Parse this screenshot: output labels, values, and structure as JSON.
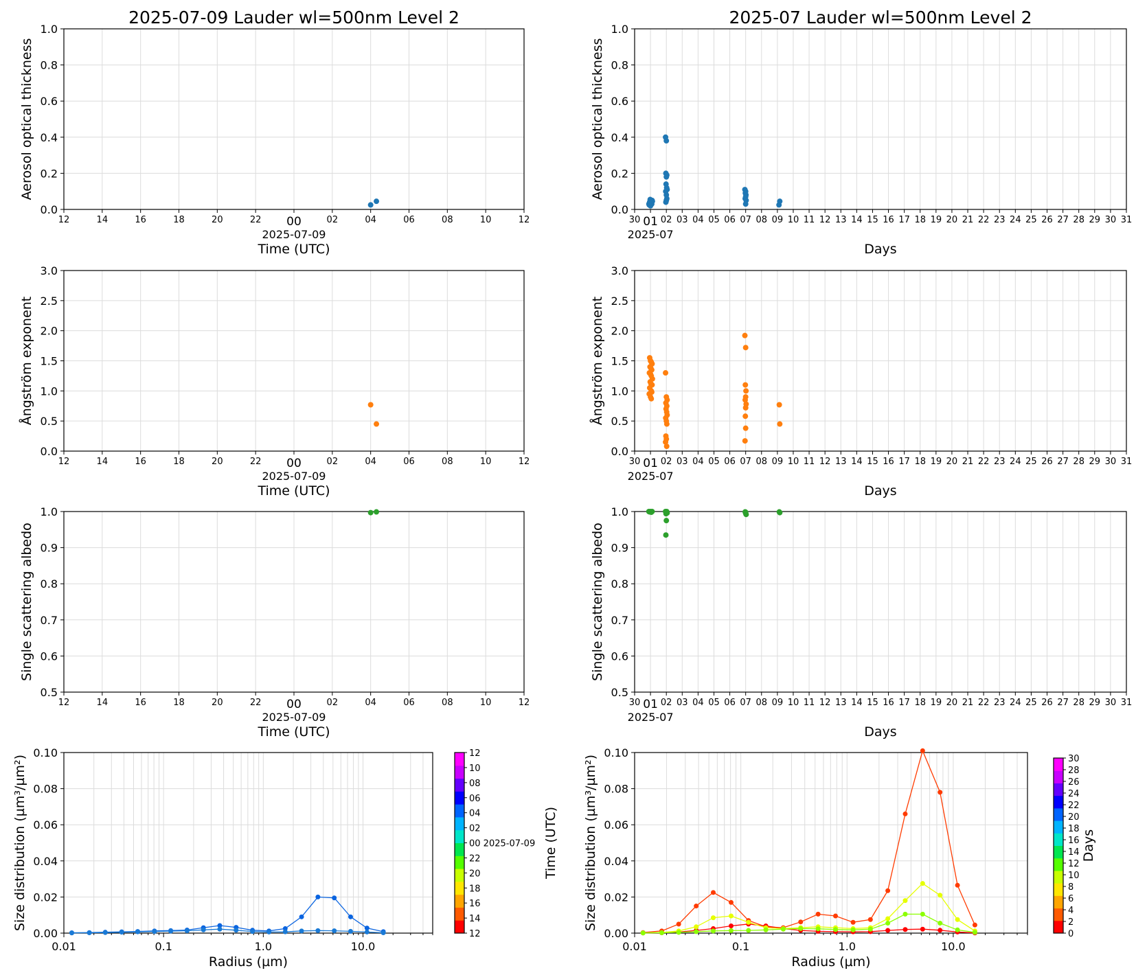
{
  "chart_data": [
    {
      "id": "p_aot_day",
      "type": "scatter",
      "title": "2025-07-09  Lauder  wl=500nm  Level 2",
      "xlabel": "Time (UTC)",
      "ylabel": "Aerosol optical thickness",
      "x_tick_labels": [
        "12",
        "14",
        "16",
        "18",
        "20",
        "22",
        "00",
        "02",
        "04",
        "06",
        "08",
        "10",
        "12"
      ],
      "x_sublabel": "2025-07-09",
      "ylim": [
        0,
        1.0
      ],
      "y_ticks": [
        "0.0",
        "0.2",
        "0.4",
        "0.6",
        "0.8",
        "1.0"
      ],
      "series": [
        {
          "color": "#1f77b4",
          "x": [
            28.0,
            28.3
          ],
          "y": [
            0.025,
            0.045
          ]
        }
      ]
    },
    {
      "id": "p_aot_month",
      "type": "scatter",
      "title": "2025-07  Lauder  wl=500nm  Level 2",
      "xlabel": "Days",
      "ylabel": "Aerosol optical thickness",
      "x_tick_labels": [
        "30",
        "01",
        "02",
        "03",
        "04",
        "05",
        "06",
        "07",
        "08",
        "09",
        "10",
        "11",
        "12",
        "13",
        "14",
        "15",
        "16",
        "17",
        "18",
        "19",
        "20",
        "21",
        "22",
        "23",
        "24",
        "25",
        "26",
        "27",
        "28",
        "29",
        "30",
        "31"
      ],
      "x_sublabel": "2025-07",
      "ylim": [
        0,
        1.0
      ],
      "y_ticks": [
        "0.0",
        "0.2",
        "0.4",
        "0.6",
        "0.8",
        "1.0"
      ],
      "series": [
        {
          "color": "#1f77b4",
          "x": [
            0.9,
            0.95,
            1.0,
            1.05,
            1.1,
            0.92,
            1.02,
            1.08,
            0.98,
            1.12,
            1.0,
            0.95,
            1.05,
            1.95,
            2.0,
            1.97,
            2.03,
            2.0,
            1.98,
            2.02,
            2.05,
            1.96,
            2.0,
            2.03,
            2.0,
            1.97,
            6.95,
            7.0,
            6.98,
            7.02,
            7.0,
            6.97,
            7.03,
            7.0,
            9.1,
            9.15
          ],
          "y": [
            0.03,
            0.04,
            0.045,
            0.035,
            0.05,
            0.025,
            0.04,
            0.03,
            0.055,
            0.045,
            0.02,
            0.04,
            0.035,
            0.4,
            0.38,
            0.2,
            0.19,
            0.18,
            0.14,
            0.12,
            0.11,
            0.1,
            0.08,
            0.06,
            0.05,
            0.04,
            0.11,
            0.1,
            0.09,
            0.08,
            0.07,
            0.06,
            0.05,
            0.03,
            0.025,
            0.045
          ]
        }
      ]
    },
    {
      "id": "p_ang_day",
      "type": "scatter",
      "xlabel": "Time (UTC)",
      "ylabel": "Ångström exponent",
      "x_tick_labels": [
        "12",
        "14",
        "16",
        "18",
        "20",
        "22",
        "00",
        "02",
        "04",
        "06",
        "08",
        "10",
        "12"
      ],
      "x_sublabel": "2025-07-09",
      "ylim": [
        0,
        3.0
      ],
      "y_ticks": [
        "0.0",
        "0.5",
        "1.0",
        "1.5",
        "2.0",
        "2.5",
        "3.0"
      ],
      "series": [
        {
          "color": "#ff7f0e",
          "x": [
            28.0,
            28.3
          ],
          "y": [
            0.77,
            0.45
          ]
        }
      ]
    },
    {
      "id": "p_ang_month",
      "type": "scatter",
      "xlabel": "Days",
      "ylabel": "Ångström exponent",
      "x_tick_labels": [
        "30",
        "01",
        "02",
        "03",
        "04",
        "05",
        "06",
        "07",
        "08",
        "09",
        "10",
        "11",
        "12",
        "13",
        "14",
        "15",
        "16",
        "17",
        "18",
        "19",
        "20",
        "21",
        "22",
        "23",
        "24",
        "25",
        "26",
        "27",
        "28",
        "29",
        "30",
        "31"
      ],
      "x_sublabel": "2025-07",
      "ylim": [
        0,
        3.0
      ],
      "y_ticks": [
        "0.0",
        "0.5",
        "1.0",
        "1.5",
        "2.0",
        "2.5",
        "3.0"
      ],
      "series": [
        {
          "color": "#ff7f0e",
          "x": [
            0.95,
            1.0,
            1.05,
            1.1,
            0.97,
            1.02,
            1.08,
            0.93,
            1.0,
            1.05,
            1.12,
            0.98,
            1.03,
            1.1,
            0.95,
            1.05,
            1.08,
            0.92,
            1.0,
            1.05,
            1.95,
            2.0,
            2.05,
            1.97,
            2.03,
            1.98,
            2.02,
            2.05,
            1.96,
            2.0,
            2.03,
            1.97,
            2.0,
            1.95,
            2.02,
            6.95,
            7.0,
            6.98,
            7.02,
            7.0,
            6.97,
            7.03,
            7.0,
            6.98,
            7.0,
            6.96,
            9.12,
            9.15
          ],
          "y": [
            1.55,
            1.5,
            1.48,
            1.45,
            1.4,
            1.38,
            1.35,
            1.3,
            1.28,
            1.25,
            1.2,
            1.15,
            1.12,
            1.1,
            1.05,
            1.0,
            0.98,
            0.95,
            0.9,
            0.87,
            1.3,
            0.9,
            0.85,
            0.8,
            0.75,
            0.7,
            0.65,
            0.6,
            0.55,
            0.5,
            0.45,
            0.25,
            0.2,
            0.15,
            0.08,
            1.92,
            1.72,
            1.1,
            1.0,
            0.9,
            0.85,
            0.78,
            0.72,
            0.58,
            0.38,
            0.17,
            0.77,
            0.45
          ]
        }
      ]
    },
    {
      "id": "p_ssa_day",
      "type": "scatter",
      "xlabel": "Time (UTC)",
      "ylabel": "Single scattering albedo",
      "x_tick_labels": [
        "12",
        "14",
        "16",
        "18",
        "20",
        "22",
        "00",
        "02",
        "04",
        "06",
        "08",
        "10",
        "12"
      ],
      "x_sublabel": "2025-07-09",
      "ylim": [
        0.5,
        1.0
      ],
      "y_ticks": [
        "0.5",
        "0.6",
        "0.7",
        "0.8",
        "0.9",
        "1.0"
      ],
      "series": [
        {
          "color": "#2ca02c",
          "x": [
            28.0,
            28.3
          ],
          "y": [
            0.997,
            0.999
          ]
        }
      ]
    },
    {
      "id": "p_ssa_month",
      "type": "scatter",
      "xlabel": "Days",
      "ylabel": "Single scattering albedo",
      "x_tick_labels": [
        "30",
        "01",
        "02",
        "03",
        "04",
        "05",
        "06",
        "07",
        "08",
        "09",
        "10",
        "11",
        "12",
        "13",
        "14",
        "15",
        "16",
        "17",
        "18",
        "19",
        "20",
        "21",
        "22",
        "23",
        "24",
        "25",
        "26",
        "27",
        "28",
        "29",
        "30",
        "31"
      ],
      "x_sublabel": "2025-07",
      "ylim": [
        0.5,
        1.0
      ],
      "y_ticks": [
        "0.5",
        "0.6",
        "0.7",
        "0.8",
        "0.9",
        "1.0"
      ],
      "series": [
        {
          "color": "#2ca02c",
          "x": [
            0.9,
            0.95,
            1.0,
            1.05,
            1.1,
            1.95,
            2.0,
            2.05,
            1.98,
            2.02,
            2.0,
            1.97,
            6.97,
            7.0,
            7.03,
            7.0,
            9.12,
            9.15
          ],
          "y": [
            1.0,
            0.999,
            1.0,
            0.998,
            1.0,
            1.0,
            0.998,
            0.996,
            0.994,
            1.0,
            0.975,
            0.935,
            0.999,
            0.995,
            0.992,
            0.998,
            0.999,
            0.997
          ]
        }
      ]
    },
    {
      "id": "p_sd_day",
      "type": "line",
      "xlabel": "Radius (µm)",
      "ylabel": "Size distribution (µm³/µm²)",
      "x_scale": "log",
      "xlim": [
        0.01,
        50
      ],
      "x_ticks": [
        {
          "value": 0.01,
          "label": "0.01"
        },
        {
          "value": 0.1,
          "label": "0.1"
        },
        {
          "value": 1.0,
          "label": "1.0"
        },
        {
          "value": 10.0,
          "label": "10.0"
        }
      ],
      "ylim": [
        0,
        0.1
      ],
      "y_ticks": [
        "0.00",
        "0.02",
        "0.04",
        "0.06",
        "0.08",
        "0.10"
      ],
      "x": [
        0.012,
        0.018,
        0.026,
        0.038,
        0.055,
        0.081,
        0.118,
        0.172,
        0.251,
        0.366,
        0.534,
        0.779,
        1.14,
        1.66,
        2.42,
        3.53,
        5.15,
        7.51,
        10.96,
        15.99
      ],
      "series": [
        {
          "color": "#0a64e0",
          "values": [
            0.0002,
            0.0003,
            0.0005,
            0.0007,
            0.0009,
            0.0012,
            0.0014,
            0.0017,
            0.003,
            0.0042,
            0.0032,
            0.0016,
            0.0012,
            0.0025,
            0.009,
            0.02,
            0.0195,
            0.009,
            0.0028,
            0.0008
          ]
        },
        {
          "color": "#1a7ad6",
          "values": [
            0.0001,
            0.0002,
            0.0003,
            0.0005,
            0.0007,
            0.0009,
            0.0011,
            0.0013,
            0.0018,
            0.0022,
            0.0016,
            0.0009,
            0.0006,
            0.0007,
            0.0012,
            0.0014,
            0.0013,
            0.001,
            0.0006,
            0.0002
          ]
        }
      ],
      "colorbar": {
        "label": "Time (UTC)",
        "ticks": [
          "12",
          "14",
          "16",
          "18",
          "20",
          "22",
          "00 2025-07-09",
          "02",
          "04",
          "06",
          "08",
          "10",
          "12"
        ],
        "colors": [
          "#ff0000",
          "#ff5a00",
          "#ffa500",
          "#ffe600",
          "#c8ff00",
          "#55ff00",
          "#00e650",
          "#00e6c8",
          "#00b4ff",
          "#0064ff",
          "#0000ff",
          "#6400ff",
          "#c800ff",
          "#ff00ff"
        ]
      }
    },
    {
      "id": "p_sd_month",
      "type": "line",
      "xlabel": "Radius (µm)",
      "ylabel": "Size distribution (µm³/µm²)",
      "x_scale": "log",
      "xlim": [
        0.01,
        50
      ],
      "x_ticks": [
        {
          "value": 0.01,
          "label": "0.01"
        },
        {
          "value": 0.1,
          "label": "0.1"
        },
        {
          "value": 1.0,
          "label": "1.0"
        },
        {
          "value": 10.0,
          "label": "10.0"
        }
      ],
      "ylim": [
        0,
        0.1
      ],
      "y_ticks": [
        "0.00",
        "0.02",
        "0.04",
        "0.06",
        "0.08",
        "0.10"
      ],
      "x": [
        0.012,
        0.018,
        0.026,
        0.038,
        0.055,
        0.081,
        0.118,
        0.172,
        0.251,
        0.366,
        0.534,
        0.779,
        1.14,
        1.66,
        2.42,
        3.53,
        5.15,
        7.51,
        10.96,
        15.99
      ],
      "series": [
        {
          "color": "#ff3b00",
          "values": [
            0.0003,
            0.0012,
            0.005,
            0.015,
            0.0225,
            0.017,
            0.007,
            0.0035,
            0.003,
            0.0062,
            0.0105,
            0.0095,
            0.006,
            0.0075,
            0.0235,
            0.066,
            0.101,
            0.078,
            0.0265,
            0.0045
          ]
        },
        {
          "color": "#ff0000",
          "values": [
            0.0001,
            0.0002,
            0.0006,
            0.0015,
            0.0025,
            0.004,
            0.005,
            0.004,
            0.0025,
            0.0015,
            0.001,
            0.0008,
            0.0007,
            0.0008,
            0.0015,
            0.002,
            0.0022,
            0.0016,
            0.0006,
            0.0001
          ]
        },
        {
          "color": "#e6ff00",
          "values": [
            0.0001,
            0.0003,
            0.0012,
            0.0035,
            0.0085,
            0.0095,
            0.006,
            0.003,
            0.0025,
            0.003,
            0.0035,
            0.003,
            0.0025,
            0.003,
            0.008,
            0.018,
            0.0275,
            0.021,
            0.0075,
            0.0012
          ]
        },
        {
          "color": "#8cff00",
          "values": [
            0.0001,
            0.0002,
            0.0004,
            0.0008,
            0.0012,
            0.0014,
            0.0015,
            0.0018,
            0.0022,
            0.0025,
            0.0024,
            0.002,
            0.0018,
            0.0022,
            0.0055,
            0.0105,
            0.0105,
            0.0055,
            0.0018,
            0.0004
          ]
        }
      ],
      "colorbar": {
        "label": "Days",
        "ticks": [
          "0",
          "2",
          "4",
          "6",
          "8",
          "10",
          "12",
          "14",
          "16",
          "18",
          "20",
          "22",
          "24",
          "26",
          "28",
          "30"
        ],
        "colors": [
          "#ff0000",
          "#ff5a00",
          "#ffa500",
          "#ffe600",
          "#c8ff00",
          "#55ff00",
          "#00e650",
          "#00e6c8",
          "#00b4ff",
          "#0064ff",
          "#0000ff",
          "#6400ff",
          "#c800ff",
          "#ff00ff"
        ]
      }
    }
  ]
}
